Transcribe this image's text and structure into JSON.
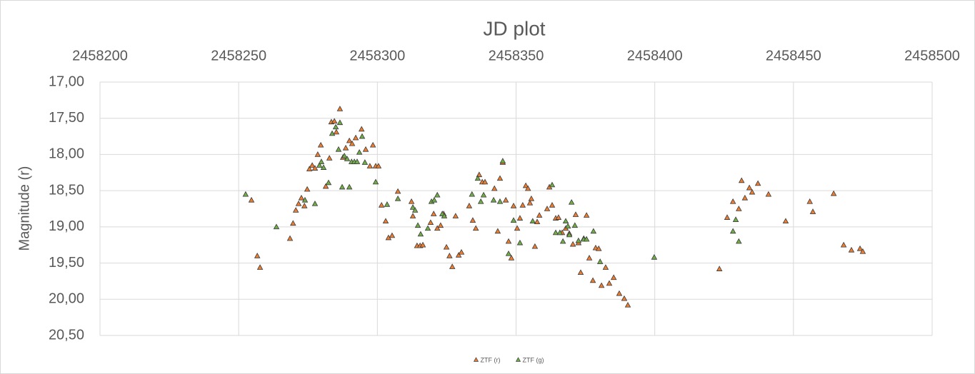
{
  "chart_data": {
    "type": "scatter",
    "title": "JD plot",
    "y_label": "Magnitude (r)",
    "x_axis_position": "top",
    "y_inverted": true,
    "grid": true,
    "legend": "bottom",
    "xlim": [
      2458200,
      2458500
    ],
    "xticks": [
      2458200,
      2458250,
      2458300,
      2458350,
      2458400,
      2458450,
      2458500
    ],
    "ylim": [
      17,
      20.5
    ],
    "yticks": [
      {
        "value": 17,
        "label": "17,00"
      },
      {
        "value": 17.5,
        "label": "17,50"
      },
      {
        "value": 18,
        "label": "18,00"
      },
      {
        "value": 18.5,
        "label": "18,50"
      },
      {
        "value": 19,
        "label": "19,00"
      },
      {
        "value": 19.5,
        "label": "19,50"
      },
      {
        "value": 20,
        "label": "20,00"
      },
      {
        "value": 20.5,
        "label": "20,50"
      }
    ],
    "series": [
      {
        "name": "ZTF (r)",
        "color": "#ed7d31",
        "x": [
          2458254.6,
          2458256.7,
          2458257.7,
          2458268.5,
          2458269.6,
          2458270.6,
          2458271.6,
          2458272.6,
          2458273.7,
          2458274.7,
          2458275.5,
          2458276.5,
          2458277.5,
          2458278.5,
          2458279.6,
          2458281.4,
          2458282.7,
          2458283.4,
          2458284.5,
          2458285.2,
          2458286.5,
          2458287.6,
          2458288.6,
          2458289.9,
          2458290.9,
          2458292.2,
          2458294.3,
          2458295.8,
          2458297.3,
          2458298.4,
          2458299.4,
          2458300.4,
          2458301.5,
          2458303.0,
          2458304.0,
          2458305.3,
          2458307.4,
          2458312.3,
          2458312.8,
          2458314.3,
          2458315.4,
          2458316.4,
          2458319.2,
          2458320.3,
          2458321.6,
          2458322.8,
          2458323.9,
          2458324.9,
          2458326.0,
          2458327.0,
          2458328.2,
          2458329.3,
          2458330.3,
          2458333.1,
          2458334.4,
          2458335.5,
          2458336.7,
          2458337.8,
          2458338.8,
          2458342.2,
          2458343.4,
          2458344.2,
          2458345.2,
          2458346.3,
          2458347.3,
          2458348.3,
          2458349.1,
          2458350.4,
          2458351.4,
          2458352.4,
          2458353.5,
          2458354.3,
          2458355.0,
          2458355.5,
          2458356.8,
          2458357.6,
          2458358.4,
          2458361.2,
          2458362.0,
          2458363.0,
          2458364.3,
          2458365.3,
          2458366.6,
          2458367.9,
          2458369.2,
          2458370.5,
          2458371.5,
          2458372.5,
          2458373.3,
          2458374.4,
          2458375.4,
          2458376.4,
          2458377.7,
          2458378.7,
          2458379.8,
          2458380.8,
          2458382.3,
          2458383.6,
          2458385.2,
          2458387.2,
          2458389.0,
          2458390.3,
          2458423.3,
          2458426.1,
          2458428.2,
          2458430.3,
          2458431.3,
          2458432.5,
          2458434.1,
          2458435.1,
          2458437.2,
          2458441.0,
          2458447.2,
          2458455.9,
          2458457.0,
          2458464.5,
          2458468.1,
          2458470.9,
          2458474.0,
          2458475.0
        ],
        "values": [
          18.63,
          19.4,
          19.56,
          19.16,
          18.95,
          18.77,
          18.68,
          18.6,
          18.71,
          18.48,
          18.2,
          18.15,
          18.19,
          18.0,
          17.87,
          18.44,
          18.05,
          17.55,
          17.54,
          17.69,
          17.37,
          18.04,
          17.91,
          17.81,
          17.85,
          17.77,
          17.65,
          17.93,
          18.16,
          17.87,
          18.16,
          18.16,
          18.7,
          18.92,
          19.15,
          19.12,
          18.51,
          18.65,
          18.85,
          19.26,
          19.26,
          19.25,
          18.94,
          18.82,
          19.02,
          18.98,
          18.82,
          19.28,
          19.4,
          19.55,
          18.85,
          19.39,
          19.35,
          18.71,
          18.91,
          19.02,
          18.28,
          18.38,
          18.38,
          18.47,
          19.06,
          18.33,
          18.11,
          18.63,
          19.2,
          19.43,
          18.71,
          19.02,
          18.88,
          18.7,
          18.43,
          18.47,
          18.67,
          18.61,
          19.27,
          18.93,
          18.84,
          18.75,
          18.45,
          18.7,
          18.88,
          18.87,
          19.08,
          19.02,
          19.09,
          19.24,
          18.83,
          19.22,
          19.63,
          19.16,
          18.84,
          19.43,
          19.74,
          19.29,
          19.3,
          19.81,
          19.56,
          19.78,
          19.7,
          19.92,
          19.99,
          20.08,
          19.58,
          18.87,
          18.65,
          18.75,
          18.36,
          18.6,
          18.46,
          18.52,
          18.4,
          18.55,
          18.92,
          18.65,
          18.79,
          18.54,
          19.25,
          19.32,
          19.3,
          19.34
        ]
      },
      {
        "name": "ZTF (g)",
        "color": "#70ad47",
        "x": [
          2458252.5,
          2458263.6,
          2458273.9,
          2458277.5,
          2458279.1,
          2458279.8,
          2458280.6,
          2458282.4,
          2458283.7,
          2458285.0,
          2458286.0,
          2458286.5,
          2458287.3,
          2458288.1,
          2458289.1,
          2458289.9,
          2458290.7,
          2458291.7,
          2458292.7,
          2458293.5,
          2458294.5,
          2458295.5,
          2458299.4,
          2458303.5,
          2458307.4,
          2458312.8,
          2458313.6,
          2458314.6,
          2458315.6,
          2458318.2,
          2458319.5,
          2458320.5,
          2458321.6,
          2458323.4,
          2458324.1,
          2458334.1,
          2458336.2,
          2458337.3,
          2458338.3,
          2458341.9,
          2458344.2,
          2458345.2,
          2458347.3,
          2458349.1,
          2458351.4,
          2458356.0,
          2458363.0,
          2458364.3,
          2458365.8,
          2458366.9,
          2458367.9,
          2458368.7,
          2458369.2,
          2458370.0,
          2458371.2,
          2458372.5,
          2458374.4,
          2458375.4,
          2458377.9,
          2458380.3,
          2458399.8,
          2458428.2,
          2458429.2,
          2458430.3
        ],
        "values": [
          18.55,
          19.0,
          18.63,
          18.68,
          18.15,
          18.1,
          18.18,
          18.39,
          17.71,
          17.62,
          17.93,
          17.56,
          18.45,
          18.02,
          18.06,
          18.45,
          18.1,
          18.1,
          18.1,
          17.97,
          17.75,
          18.11,
          18.38,
          18.69,
          18.61,
          18.73,
          18.77,
          18.98,
          19.1,
          19.02,
          18.65,
          18.63,
          18.56,
          18.82,
          18.85,
          18.55,
          18.33,
          18.65,
          18.56,
          18.63,
          18.65,
          18.09,
          19.37,
          18.91,
          19.22,
          18.92,
          18.42,
          19.08,
          19.08,
          19.2,
          18.92,
          18.99,
          19.11,
          18.66,
          18.98,
          19.19,
          19.17,
          19.17,
          19.06,
          19.48,
          19.42,
          19.06,
          18.9,
          19.2
        ]
      }
    ]
  }
}
